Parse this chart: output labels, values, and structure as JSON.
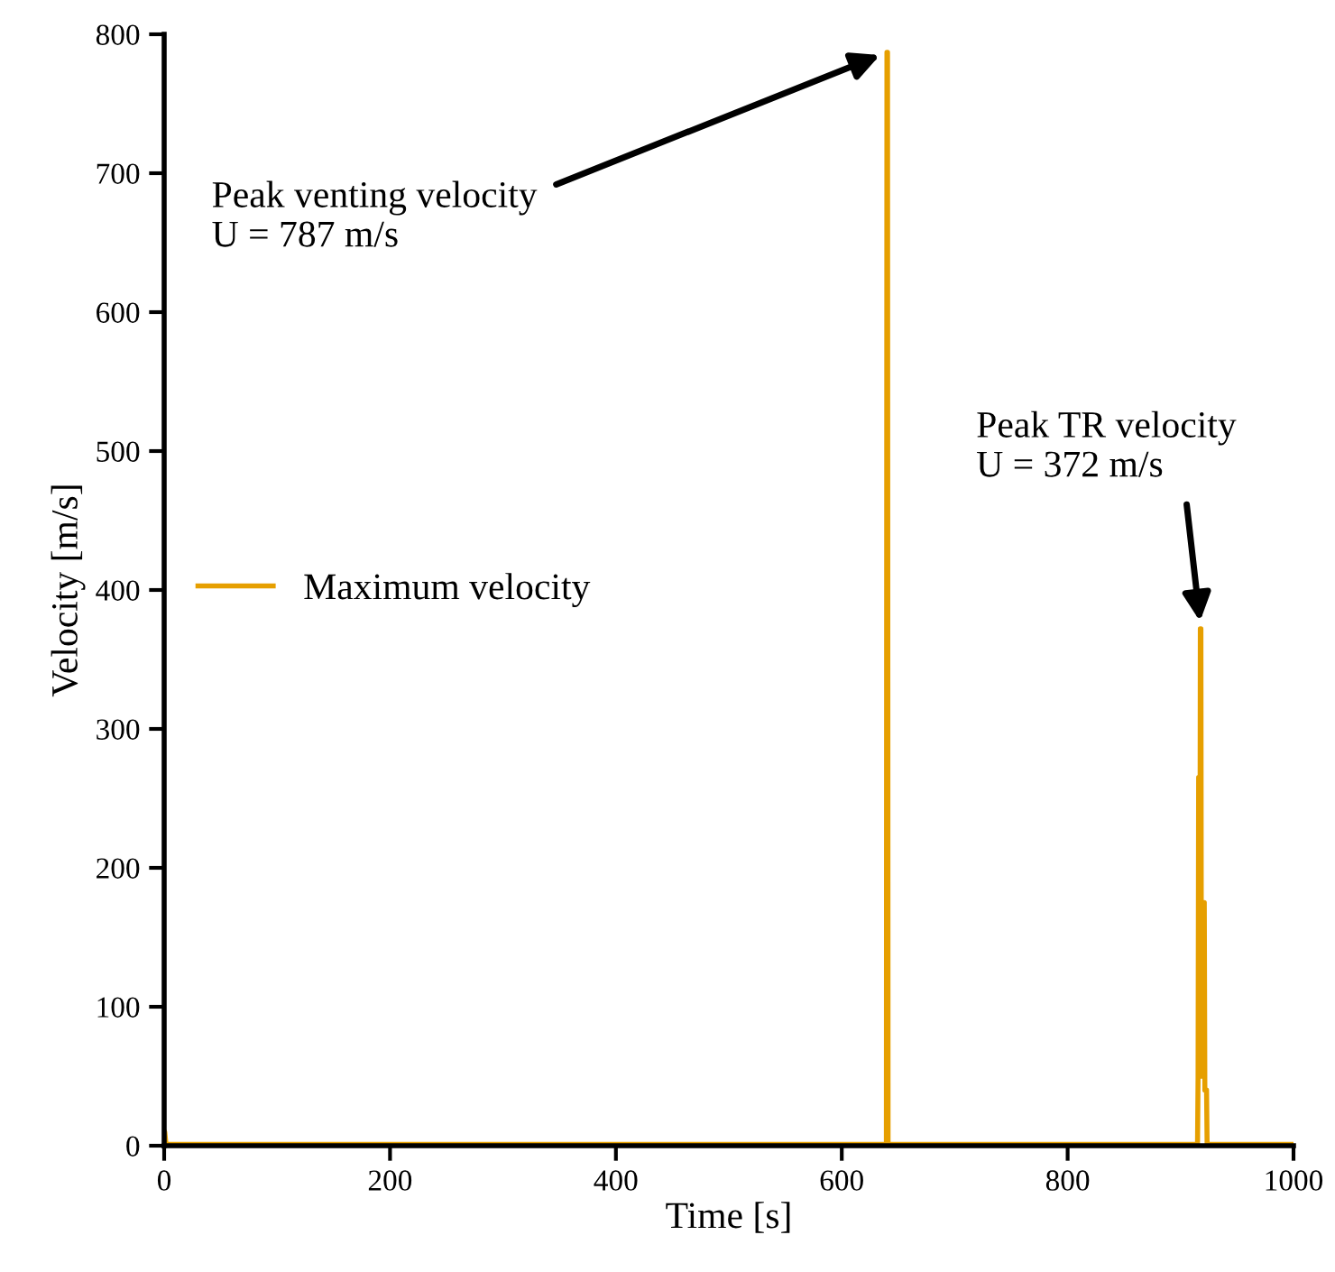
{
  "chart_data": {
    "type": "line",
    "xlabel": "Time [s]",
    "ylabel": "Velocity [m/s]",
    "series": [
      {
        "name": "Maximum velocity",
        "color": "#e69f00",
        "x": [
          0,
          0.5,
          1.5,
          2.5,
          639.5,
          640,
          640.5,
          641,
          915,
          915.5,
          916,
          916.5,
          917,
          917.5,
          918,
          918.5,
          919,
          920,
          920.5,
          921,
          921.5,
          922,
          922.5,
          923,
          923.5,
          924,
          1000
        ],
        "values": [
          10,
          10,
          2,
          1,
          1,
          787,
          787,
          1,
          1,
          50,
          265,
          50,
          50,
          372,
          372,
          50,
          50,
          50,
          175,
          175,
          40,
          40,
          40,
          40,
          1,
          1,
          1
        ]
      }
    ],
    "xlim": [
      0,
      1000
    ],
    "ylim": [
      0,
      800
    ],
    "xticks": [
      0,
      200,
      400,
      600,
      800,
      1000
    ],
    "yticks": [
      0,
      100,
      200,
      300,
      400,
      500,
      600,
      700,
      800
    ],
    "annotations": [
      {
        "text": "Peak venting velocity\nU = 787 m/s",
        "x": 640,
        "y": 787
      },
      {
        "text": "Peak TR velocity\nU = 372 m/s",
        "x": 918,
        "y": 372
      }
    ],
    "legend": "center left",
    "grid": false
  }
}
